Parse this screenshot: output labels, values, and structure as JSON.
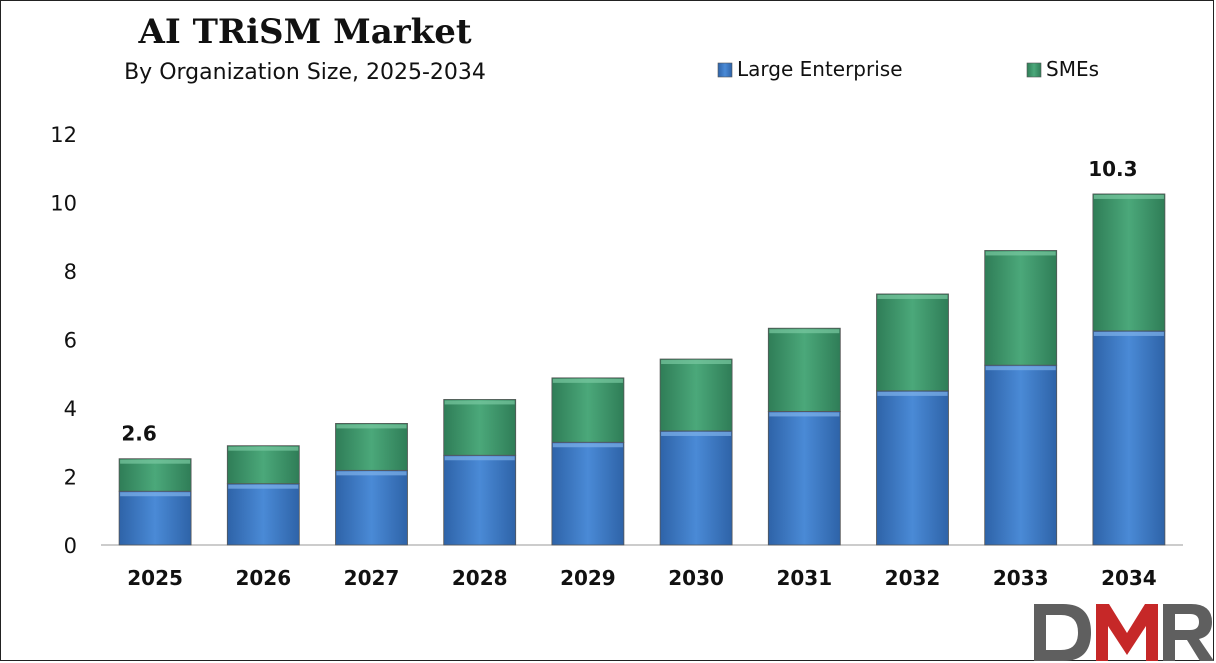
{
  "chart_data": {
    "type": "bar",
    "stacked": true,
    "title": "AI TRiSM Market",
    "subtitle": "By Organization Size, 2025-2034",
    "categories": [
      "2025",
      "2026",
      "2027",
      "2028",
      "2029",
      "2030",
      "2031",
      "2032",
      "2033",
      "2034"
    ],
    "series": [
      {
        "name": "Large Enterprise",
        "color": "#3d7cc9",
        "values": [
          1.57,
          1.79,
          2.18,
          2.62,
          3.0,
          3.33,
          3.9,
          4.5,
          5.25,
          6.25
        ]
      },
      {
        "name": "SMEs",
        "color": "#3f9a6e",
        "values": [
          0.95,
          1.11,
          1.37,
          1.63,
          1.88,
          2.1,
          2.43,
          2.83,
          3.35,
          4.0
        ]
      }
    ],
    "data_labels": [
      {
        "category": "2025",
        "text": "2.6"
      },
      {
        "category": "2034",
        "text": "10.3"
      }
    ],
    "ylim": [
      0,
      12
    ],
    "yticks": [
      "0",
      "2",
      "4",
      "6",
      "8",
      "10",
      "12"
    ],
    "grid": false,
    "legend": "top-right",
    "xlabel": "",
    "ylabel": ""
  },
  "logo": {
    "text": "DMR",
    "colors": [
      "#5a5a5a",
      "#c62828"
    ]
  }
}
